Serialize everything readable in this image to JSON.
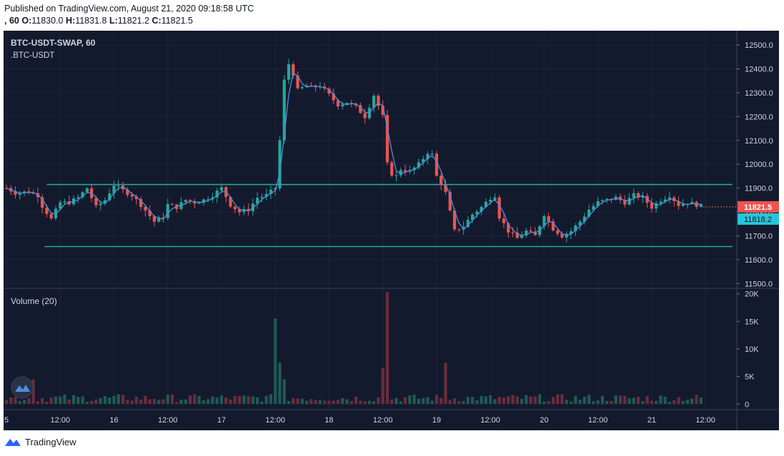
{
  "header": {
    "published": "Published on TradingView.com, August 21, 2020 09:18:58 UTC",
    "interval_prefix": ", 60",
    "o_key": "O:",
    "o_val": "11830.0",
    "h_key": "H:",
    "h_val": "11831.8",
    "l_key": "L:",
    "l_val": "11821.2",
    "c_key": "C:",
    "c_val": "11821.5"
  },
  "footer": {
    "brand": "TradingView"
  },
  "colors": {
    "background": "#131a2e",
    "up": "#26a69a",
    "down": "#ef5350",
    "up_volume": "#1f5a55",
    "down_volume": "#6b2d3a",
    "ma_line": "#4f8fd6",
    "support_line": "#26a69a",
    "last_price": "#ef5350",
    "ma_price": "#26c6da"
  },
  "chart_data": [
    {
      "type": "candlestick",
      "title": "BTC-USDT-SWAP, 60",
      "subtitle": ".BTC-USDT",
      "ylim": [
        11480,
        12560
      ],
      "y_ticks": [
        "12500.0",
        "12400.0",
        "12300.0",
        "12200.0",
        "12100.0",
        "12000.0",
        "11900.0",
        "11800.0",
        "11700.0",
        "11600.0",
        "11500.0"
      ],
      "y_tick_values": [
        12500,
        12400,
        12300,
        12200,
        12100,
        12000,
        11900,
        11800,
        11700,
        11600,
        11500
      ],
      "x_ticks": [
        "5",
        "12:00",
        "16",
        "12:00",
        "17",
        "12:00",
        "18",
        "12:00",
        "19",
        "12:00",
        "20",
        "12:00",
        "21",
        "12:00"
      ],
      "x_tick_hours": [
        0,
        12,
        24,
        36,
        48,
        60,
        72,
        84,
        96,
        108,
        120,
        132,
        144,
        156
      ],
      "last_price": {
        "label": "11821.5",
        "value": 11821.5
      },
      "ma_price": {
        "label": "11818.2",
        "value": 11818.2
      },
      "horizontal_lines": [
        {
          "value": 11915,
          "from_hour": 9,
          "to_hour": 162
        },
        {
          "value": 11655,
          "from_hour": 8.5,
          "to_hour": 162
        }
      ],
      "anchors_hours": [
        0,
        2,
        5,
        7,
        8,
        10,
        12,
        14,
        16,
        18,
        20,
        22,
        24,
        26,
        28,
        30,
        33,
        35,
        36,
        38,
        40,
        42,
        44,
        46,
        48,
        50,
        52,
        54,
        56,
        58,
        60,
        61,
        62,
        63,
        64,
        65,
        66,
        67,
        68,
        70,
        72,
        74,
        76,
        78,
        80,
        82,
        84,
        85,
        86,
        87,
        88,
        90,
        92,
        94,
        95,
        96,
        97,
        98,
        99,
        100,
        102,
        104,
        106,
        108,
        109,
        110,
        112,
        114,
        116,
        118,
        120,
        122,
        124,
        126,
        128,
        130,
        132,
        134,
        136,
        138,
        140,
        142,
        144,
        146,
        148,
        150,
        152,
        154,
        155.5
      ],
      "anchors_close": [
        11900,
        11880,
        11885,
        11870,
        11825,
        11770,
        11840,
        11840,
        11860,
        11900,
        11820,
        11850,
        11915,
        11890,
        11870,
        11830,
        11760,
        11780,
        11830,
        11820,
        11850,
        11840,
        11850,
        11870,
        11900,
        11830,
        11800,
        11810,
        11860,
        11870,
        11900,
        12100,
        12350,
        12420,
        12380,
        12310,
        12320,
        12330,
        12320,
        12330,
        12290,
        12250,
        12260,
        12240,
        12200,
        12290,
        12200,
        12000,
        11960,
        11950,
        11980,
        11970,
        12000,
        12050,
        12040,
        11950,
        11920,
        11880,
        11800,
        11720,
        11740,
        11790,
        11820,
        11860,
        11870,
        11780,
        11720,
        11690,
        11720,
        11700,
        11790,
        11730,
        11700,
        11720,
        11760,
        11810,
        11840,
        11850,
        11860,
        11840,
        11870,
        11860,
        11820,
        11850,
        11870,
        11830,
        11840,
        11830,
        11821.5
      ]
    },
    {
      "type": "bar",
      "title": "Volume (20)",
      "ylim": [
        -1000,
        21000
      ],
      "y_ticks": [
        "20K",
        "15K",
        "10K",
        "5K",
        "0"
      ],
      "y_tick_values": [
        20000,
        15000,
        10000,
        5000,
        0
      ],
      "spikes": [
        {
          "hour": 6,
          "value": 4500
        },
        {
          "hour": 60,
          "value": 15500
        },
        {
          "hour": 61,
          "value": 7500
        },
        {
          "hour": 62,
          "value": 4500
        },
        {
          "hour": 84,
          "value": 6500
        },
        {
          "hour": 85,
          "value": 20300
        },
        {
          "hour": 98,
          "value": 7500
        }
      ]
    }
  ]
}
